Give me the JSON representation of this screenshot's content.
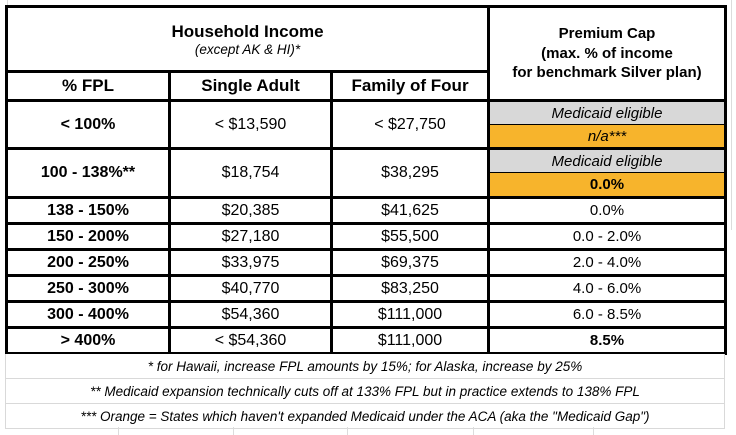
{
  "colors": {
    "orange": "#F7B42C",
    "gray": "#D8D8D8",
    "table_border": "#000000",
    "gridline": "#DCDCDC"
  },
  "header": {
    "income_title": "Household Income",
    "income_subtitle": "(except AK & HI)*",
    "premium_cap_line1": "Premium Cap",
    "premium_cap_line2": "(max. % of income",
    "premium_cap_line3": "for benchmark Silver plan)",
    "columns": {
      "fpl": "% FPL",
      "single_adult": "Single Adult",
      "family_of_four": "Family of Four"
    }
  },
  "rows": [
    {
      "fpl": "< 100%",
      "single_adult": "< $13,590",
      "family_of_four": "< $27,750",
      "premium_gray": "Medicaid eligible",
      "premium_orange": "n/a***"
    },
    {
      "fpl": "100 - 138%**",
      "single_adult": "$18,754",
      "family_of_four": "$38,295",
      "premium_gray": "Medicaid eligible",
      "premium_orange": "0.0%"
    },
    {
      "fpl": "138 - 150%",
      "single_adult": "$20,385",
      "family_of_four": "$41,625",
      "premium": "0.0%"
    },
    {
      "fpl": "150 - 200%",
      "single_adult": "$27,180",
      "family_of_four": "$55,500",
      "premium": "0.0 - 2.0%"
    },
    {
      "fpl": "200 - 250%",
      "single_adult": "$33,975",
      "family_of_four": "$69,375",
      "premium": "2.0 - 4.0%"
    },
    {
      "fpl": "250 - 300%",
      "single_adult": "$40,770",
      "family_of_four": "$83,250",
      "premium": "4.0 - 6.0%"
    },
    {
      "fpl": "300 - 400%",
      "single_adult": "$54,360",
      "family_of_four": "$111,000",
      "premium": "6.0 - 8.5%"
    },
    {
      "fpl": "> 400%",
      "single_adult": "< $54,360",
      "family_of_four": "$111,000",
      "premium": "8.5%"
    }
  ],
  "footnotes": [
    "* for Hawaii, increase FPL amounts by 15%; for Alaska, increase by 25%",
    "** Medicaid expansion technically cuts off at 133% FPL but in practice extends to 138% FPL",
    "*** Orange = States which haven't expanded Medicaid under the ACA (aka the \"Medicaid Gap\")"
  ],
  "chart_data": {
    "type": "table",
    "title": "Household Income vs Premium Cap (max. % of income for benchmark Silver plan)",
    "columns": [
      "% FPL",
      "Single Adult",
      "Family of Four",
      "Premium Cap"
    ],
    "rows": [
      [
        "< 100%",
        "< $13,590",
        "< $27,750",
        "Medicaid eligible | n/a*** (Medicaid Gap states)"
      ],
      [
        "100 - 138%**",
        "$18,754",
        "$38,295",
        "Medicaid eligible | 0.0% (Medicaid Gap states)"
      ],
      [
        "138 - 150%",
        "$20,385",
        "$41,625",
        "0.0%"
      ],
      [
        "150 - 200%",
        "$27,180",
        "$55,500",
        "0.0 - 2.0%"
      ],
      [
        "200 - 250%",
        "$33,975",
        "$69,375",
        "2.0 - 4.0%"
      ],
      [
        "250 - 300%",
        "$40,770",
        "$83,250",
        "4.0 - 6.0%"
      ],
      [
        "300 - 400%",
        "$54,360",
        "$111,000",
        "6.0 - 8.5%"
      ],
      [
        "> 400%",
        "< $54,360",
        "$111,000",
        "8.5%"
      ]
    ],
    "legend": {
      "gray_cells": "Medicaid eligible",
      "orange_cells": "States which haven't expanded Medicaid under the ACA (Medicaid Gap)"
    },
    "notes": [
      "* for Hawaii, increase FPL amounts by 15%; for Alaska, increase by 25%",
      "** Medicaid expansion technically cuts off at 133% FPL but in practice extends to 138% FPL",
      "*** Orange = States which haven't expanded Medicaid under the ACA (aka the \"Medicaid Gap\")"
    ]
  }
}
